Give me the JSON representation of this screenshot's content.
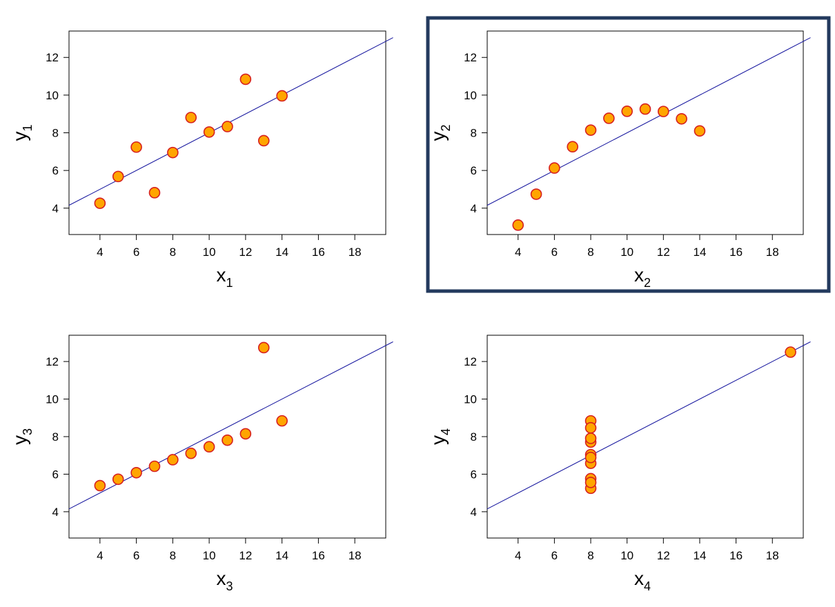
{
  "colors": {
    "marker_fill": "#FFA500",
    "marker_stroke": "#D62020",
    "fit_line": "#1A1AA0",
    "highlight_border": "#233A5E"
  },
  "highlighted_panel": 1,
  "chart_data": [
    {
      "type": "scatter",
      "xlabel": "x",
      "xlabel_sub": "1",
      "ylabel": "y",
      "ylabel_sub": "1",
      "xticks": [
        4,
        6,
        8,
        10,
        12,
        14,
        16,
        18
      ],
      "yticks": [
        4,
        6,
        8,
        10,
        12
      ],
      "xlim": [
        2.3,
        19.7
      ],
      "ylim": [
        2.6,
        13.4
      ],
      "fit_line": {
        "intercept": 3.0,
        "slope": 0.5
      },
      "points": [
        {
          "x": 4,
          "y": 4.26
        },
        {
          "x": 5,
          "y": 5.68
        },
        {
          "x": 6,
          "y": 7.24
        },
        {
          "x": 7,
          "y": 4.82
        },
        {
          "x": 8,
          "y": 6.95
        },
        {
          "x": 9,
          "y": 8.81
        },
        {
          "x": 10,
          "y": 8.04
        },
        {
          "x": 11,
          "y": 8.33
        },
        {
          "x": 12,
          "y": 10.84
        },
        {
          "x": 13,
          "y": 7.58
        },
        {
          "x": 14,
          "y": 9.96
        }
      ]
    },
    {
      "type": "scatter",
      "xlabel": "x",
      "xlabel_sub": "2",
      "ylabel": "y",
      "ylabel_sub": "2",
      "xticks": [
        4,
        6,
        8,
        10,
        12,
        14,
        16,
        18
      ],
      "yticks": [
        4,
        6,
        8,
        10,
        12
      ],
      "xlim": [
        2.3,
        19.7
      ],
      "ylim": [
        2.6,
        13.4
      ],
      "fit_line": {
        "intercept": 3.0,
        "slope": 0.5
      },
      "points": [
        {
          "x": 4,
          "y": 3.1
        },
        {
          "x": 5,
          "y": 4.74
        },
        {
          "x": 6,
          "y": 6.13
        },
        {
          "x": 7,
          "y": 7.26
        },
        {
          "x": 8,
          "y": 8.14
        },
        {
          "x": 9,
          "y": 8.77
        },
        {
          "x": 10,
          "y": 9.14
        },
        {
          "x": 11,
          "y": 9.26
        },
        {
          "x": 12,
          "y": 9.13
        },
        {
          "x": 13,
          "y": 8.74
        },
        {
          "x": 14,
          "y": 8.1
        }
      ]
    },
    {
      "type": "scatter",
      "xlabel": "x",
      "xlabel_sub": "3",
      "ylabel": "y",
      "ylabel_sub": "3",
      "xticks": [
        4,
        6,
        8,
        10,
        12,
        14,
        16,
        18
      ],
      "yticks": [
        4,
        6,
        8,
        10,
        12
      ],
      "xlim": [
        2.3,
        19.7
      ],
      "ylim": [
        2.6,
        13.4
      ],
      "fit_line": {
        "intercept": 3.0,
        "slope": 0.5
      },
      "points": [
        {
          "x": 4,
          "y": 5.39
        },
        {
          "x": 5,
          "y": 5.73
        },
        {
          "x": 6,
          "y": 6.08
        },
        {
          "x": 7,
          "y": 6.42
        },
        {
          "x": 8,
          "y": 6.77
        },
        {
          "x": 9,
          "y": 7.11
        },
        {
          "x": 10,
          "y": 7.46
        },
        {
          "x": 11,
          "y": 7.81
        },
        {
          "x": 12,
          "y": 8.15
        },
        {
          "x": 13,
          "y": 12.74
        },
        {
          "x": 14,
          "y": 8.84
        }
      ]
    },
    {
      "type": "scatter",
      "xlabel": "x",
      "xlabel_sub": "4",
      "ylabel": "y",
      "ylabel_sub": "4",
      "xticks": [
        4,
        6,
        8,
        10,
        12,
        14,
        16,
        18
      ],
      "yticks": [
        4,
        6,
        8,
        10,
        12
      ],
      "xlim": [
        2.3,
        19.7
      ],
      "ylim": [
        2.6,
        13.4
      ],
      "fit_line": {
        "intercept": 3.0,
        "slope": 0.5
      },
      "points": [
        {
          "x": 8,
          "y": 6.58
        },
        {
          "x": 8,
          "y": 5.76
        },
        {
          "x": 8,
          "y": 7.71
        },
        {
          "x": 8,
          "y": 8.84
        },
        {
          "x": 8,
          "y": 8.47
        },
        {
          "x": 8,
          "y": 7.04
        },
        {
          "x": 8,
          "y": 5.25
        },
        {
          "x": 19,
          "y": 12.5
        },
        {
          "x": 8,
          "y": 5.56
        },
        {
          "x": 8,
          "y": 7.91
        },
        {
          "x": 8,
          "y": 6.89
        }
      ]
    }
  ]
}
